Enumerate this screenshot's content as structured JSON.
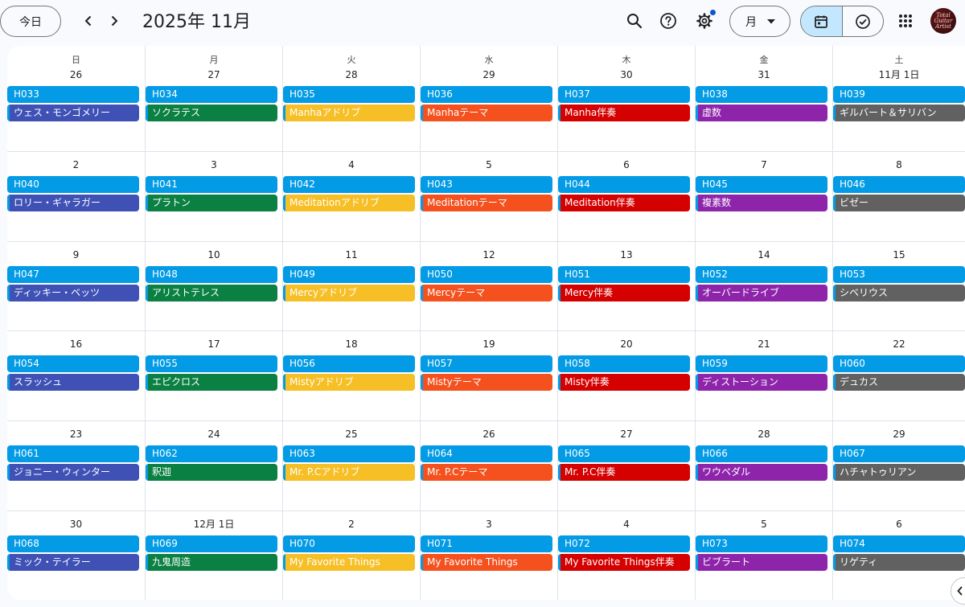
{
  "header": {
    "today_label": "今日",
    "month_title": "2025年 11月",
    "view_label": "月"
  },
  "icons": {
    "prev": "chevron-left-icon",
    "next": "chevron-right-icon",
    "search": "search-icon",
    "help": "help-icon",
    "settings": "gear-icon",
    "view_caret": "caret-down-icon",
    "calendar_view": "calendar-icon",
    "tasks_view": "task-check-icon",
    "apps": "apps-grid-icon",
    "side_panel": "chevron-left-icon"
  },
  "avatar": {
    "text": "Total Guitar Artist"
  },
  "colors": {
    "header_chip": "#039be5",
    "categories": [
      "#3f51b5",
      "#0b8043",
      "#f6bf26",
      "#f4511e",
      "#d50000",
      "#8e24aa",
      "#616161"
    ],
    "accent_dot": "#0b57d0",
    "active_toggle": "#c2e7ff"
  },
  "calendar": {
    "weekdays": [
      "日",
      "月",
      "火",
      "水",
      "木",
      "金",
      "土"
    ],
    "weeks": [
      [
        {
          "date": "26",
          "code": "H033",
          "title": "ウェス・モンゴメリー"
        },
        {
          "date": "27",
          "code": "H034",
          "title": "ソクラテス"
        },
        {
          "date": "28",
          "code": "H035",
          "title": "Manhaアドリブ"
        },
        {
          "date": "29",
          "code": "H036",
          "title": "Manhaテーマ"
        },
        {
          "date": "30",
          "code": "H037",
          "title": "Manha伴奏"
        },
        {
          "date": "31",
          "code": "H038",
          "title": "虚数"
        },
        {
          "date": "11月 1日",
          "code": "H039",
          "title": "ギルバート＆サリバン"
        }
      ],
      [
        {
          "date": "2",
          "code": "H040",
          "title": "ロリー・ギャラガー"
        },
        {
          "date": "3",
          "code": "H041",
          "title": "プラトン"
        },
        {
          "date": "4",
          "code": "H042",
          "title": "Meditationアドリブ"
        },
        {
          "date": "5",
          "code": "H043",
          "title": "Meditationテーマ"
        },
        {
          "date": "6",
          "code": "H044",
          "title": "Meditation伴奏"
        },
        {
          "date": "7",
          "code": "H045",
          "title": "複素数"
        },
        {
          "date": "8",
          "code": "H046",
          "title": "ビゼー"
        }
      ],
      [
        {
          "date": "9",
          "code": "H047",
          "title": "ディッキー・ベッツ"
        },
        {
          "date": "10",
          "code": "H048",
          "title": "アリストテレス"
        },
        {
          "date": "11",
          "code": "H049",
          "title": "Mercyアドリブ"
        },
        {
          "date": "12",
          "code": "H050",
          "title": "Mercyテーマ"
        },
        {
          "date": "13",
          "code": "H051",
          "title": "Mercy伴奏"
        },
        {
          "date": "14",
          "code": "H052",
          "title": "オーバードライブ"
        },
        {
          "date": "15",
          "code": "H053",
          "title": "シベリウス"
        }
      ],
      [
        {
          "date": "16",
          "code": "H054",
          "title": "スラッシュ"
        },
        {
          "date": "17",
          "code": "H055",
          "title": "エピクロス"
        },
        {
          "date": "18",
          "code": "H056",
          "title": "Mistyアドリブ"
        },
        {
          "date": "19",
          "code": "H057",
          "title": "Mistyテーマ"
        },
        {
          "date": "20",
          "code": "H058",
          "title": "Misty伴奏"
        },
        {
          "date": "21",
          "code": "H059",
          "title": "ディストーション"
        },
        {
          "date": "22",
          "code": "H060",
          "title": "デュカス"
        }
      ],
      [
        {
          "date": "23",
          "code": "H061",
          "title": "ジョニー・ウィンター"
        },
        {
          "date": "24",
          "code": "H062",
          "title": "釈迦"
        },
        {
          "date": "25",
          "code": "H063",
          "title": "Mr. P.Cアドリブ"
        },
        {
          "date": "26",
          "code": "H064",
          "title": "Mr. P.Cテーマ"
        },
        {
          "date": "27",
          "code": "H065",
          "title": "Mr. P.C伴奏"
        },
        {
          "date": "28",
          "code": "H066",
          "title": "ワウペダル"
        },
        {
          "date": "29",
          "code": "H067",
          "title": "ハチャトゥリアン"
        }
      ],
      [
        {
          "date": "30",
          "code": "H068",
          "title": "ミック・テイラー"
        },
        {
          "date": "12月 1日",
          "code": "H069",
          "title": "九鬼周造"
        },
        {
          "date": "2",
          "code": "H070",
          "title": "My Favorite Things"
        },
        {
          "date": "3",
          "code": "H071",
          "title": "My Favorite Things"
        },
        {
          "date": "4",
          "code": "H072",
          "title": "My Favorite Things伴奏"
        },
        {
          "date": "5",
          "code": "H073",
          "title": "ビブラート"
        },
        {
          "date": "6",
          "code": "H074",
          "title": "リゲティ"
        }
      ]
    ]
  }
}
